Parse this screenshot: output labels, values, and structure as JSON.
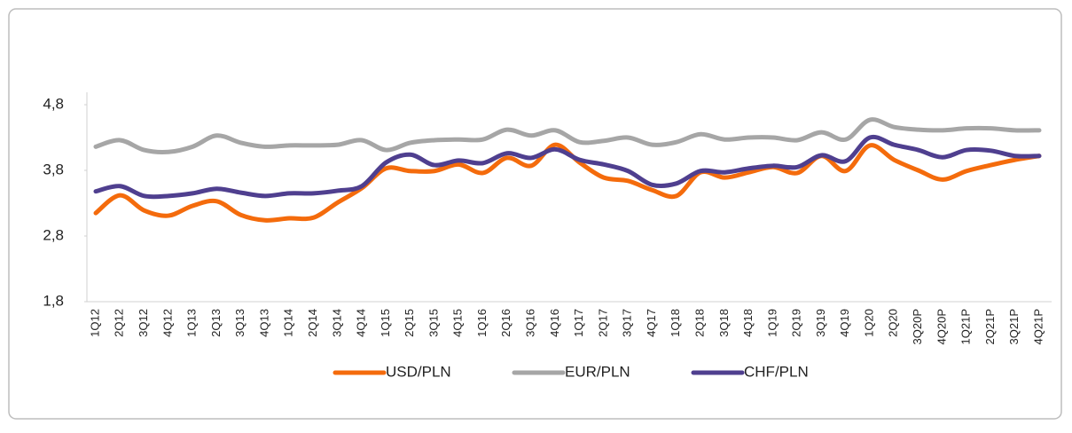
{
  "chart_data": {
    "type": "line",
    "categories": [
      "1Q12",
      "2Q12",
      "3Q12",
      "4Q12",
      "1Q13",
      "2Q13",
      "3Q13",
      "4Q13",
      "1Q14",
      "2Q14",
      "3Q14",
      "4Q14",
      "1Q15",
      "2Q15",
      "3Q15",
      "4Q15",
      "1Q16",
      "2Q16",
      "3Q16",
      "4Q16",
      "1Q17",
      "2Q17",
      "3Q17",
      "4Q17",
      "1Q18",
      "2Q18",
      "3Q18",
      "4Q18",
      "1Q19",
      "2Q19",
      "3Q19",
      "4Q19",
      "1Q20",
      "2Q20",
      "3Q20P",
      "4Q20P",
      "1Q21P",
      "2Q21P",
      "3Q21P",
      "4Q21P"
    ],
    "series": [
      {
        "name": "USD/PLN",
        "color": "#f46b0c",
        "values": [
          3.15,
          3.42,
          3.19,
          3.11,
          3.26,
          3.33,
          3.12,
          3.04,
          3.07,
          3.08,
          3.31,
          3.53,
          3.83,
          3.79,
          3.79,
          3.89,
          3.76,
          3.99,
          3.87,
          4.19,
          3.92,
          3.69,
          3.64,
          3.5,
          3.41,
          3.77,
          3.69,
          3.77,
          3.85,
          3.76,
          4.02,
          3.79,
          4.18,
          3.96,
          3.8,
          3.66,
          3.79,
          3.88,
          3.96,
          4.02
        ]
      },
      {
        "name": "EUR/PLN",
        "color": "#a6a6a6",
        "values": [
          4.16,
          4.26,
          4.11,
          4.08,
          4.16,
          4.33,
          4.22,
          4.16,
          4.18,
          4.18,
          4.19,
          4.26,
          4.11,
          4.22,
          4.26,
          4.27,
          4.27,
          4.42,
          4.33,
          4.41,
          4.23,
          4.25,
          4.3,
          4.19,
          4.23,
          4.35,
          4.27,
          4.3,
          4.3,
          4.26,
          4.38,
          4.27,
          4.57,
          4.46,
          4.42,
          4.41,
          4.44,
          4.44,
          4.41,
          4.41
        ]
      },
      {
        "name": "CHF/PLN",
        "color": "#4f3f8f",
        "values": [
          3.48,
          3.56,
          3.41,
          3.41,
          3.45,
          3.52,
          3.46,
          3.41,
          3.45,
          3.45,
          3.49,
          3.56,
          3.92,
          4.04,
          3.88,
          3.95,
          3.91,
          4.06,
          3.99,
          4.12,
          3.96,
          3.89,
          3.79,
          3.58,
          3.6,
          3.79,
          3.77,
          3.83,
          3.87,
          3.85,
          4.03,
          3.94,
          4.3,
          4.19,
          4.11,
          4.0,
          4.11,
          4.1,
          4.02,
          4.02
        ]
      }
    ],
    "ylim": [
      1.8,
      4.8
    ],
    "yticks": [
      {
        "value": 1.8,
        "label": "1,8"
      },
      {
        "value": 2.8,
        "label": "2,8"
      },
      {
        "value": 3.8,
        "label": "3,8"
      },
      {
        "value": 4.8,
        "label": "4,8"
      }
    ],
    "legend": "bottom"
  }
}
